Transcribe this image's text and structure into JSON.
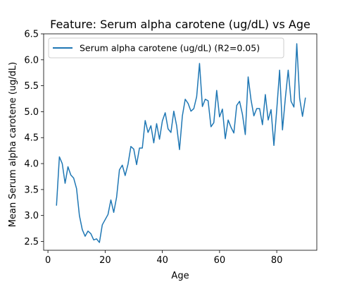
{
  "chart_data": {
    "type": "line",
    "title": "Feature: Serum alpha carotene (ug/dL) vs Age",
    "xlabel": "Age",
    "ylabel": "Mean Serum alpha carotene (ug/dL)",
    "xlim": [
      -1.5,
      94
    ],
    "ylim": [
      2.33,
      6.5
    ],
    "x_ticks": [
      0,
      20,
      40,
      60,
      80
    ],
    "y_ticks": [
      2.5,
      3.0,
      3.5,
      4.0,
      4.5,
      5.0,
      5.5,
      6.0,
      6.5
    ],
    "x_tick_labels": [
      "0",
      "20",
      "40",
      "60",
      "80"
    ],
    "y_tick_labels": [
      "2.5",
      "3.0",
      "3.5",
      "4.0",
      "4.5",
      "5.0",
      "5.5",
      "6.0",
      "6.5"
    ],
    "grid": false,
    "legend_position": "upper-left",
    "series": [
      {
        "name": "Serum alpha carotene (ug/dL) (R2=0.05)",
        "color": "#1f77b4",
        "x": [
          3,
          4,
          5,
          6,
          7,
          8,
          9,
          10,
          11,
          12,
          13,
          14,
          15,
          16,
          17,
          18,
          19,
          20,
          21,
          22,
          23,
          24,
          25,
          26,
          27,
          28,
          29,
          30,
          31,
          32,
          33,
          34,
          35,
          36,
          37,
          38,
          39,
          40,
          41,
          42,
          43,
          44,
          45,
          46,
          47,
          48,
          49,
          50,
          51,
          52,
          53,
          54,
          55,
          56,
          57,
          58,
          59,
          60,
          61,
          62,
          63,
          64,
          65,
          66,
          67,
          68,
          69,
          70,
          71,
          72,
          73,
          74,
          75,
          76,
          77,
          78,
          79,
          80,
          81,
          82,
          83,
          84,
          85,
          86,
          87,
          88,
          89,
          90
        ],
        "y": [
          3.2,
          4.13,
          4.0,
          3.62,
          3.94,
          3.78,
          3.72,
          3.52,
          3.0,
          2.73,
          2.6,
          2.7,
          2.65,
          2.53,
          2.55,
          2.48,
          2.82,
          2.92,
          3.02,
          3.3,
          3.06,
          3.35,
          3.88,
          3.97,
          3.77,
          3.99,
          4.33,
          4.28,
          3.98,
          4.3,
          4.3,
          4.83,
          4.6,
          4.73,
          4.4,
          4.77,
          4.47,
          4.82,
          4.98,
          4.67,
          4.6,
          5.01,
          4.73,
          4.27,
          4.92,
          5.24,
          5.16,
          5.01,
          5.06,
          5.29,
          5.93,
          5.1,
          5.24,
          5.21,
          4.71,
          4.79,
          5.41,
          4.9,
          5.05,
          4.48,
          4.84,
          4.7,
          4.59,
          5.12,
          5.2,
          4.95,
          4.56,
          5.67,
          5.23,
          4.92,
          5.06,
          5.06,
          4.75,
          5.33,
          4.84,
          5.04,
          4.35,
          5.04,
          5.8,
          4.65,
          5.26,
          5.8,
          5.2,
          5.09,
          6.31,
          5.26,
          4.91,
          5.26
        ]
      }
    ]
  }
}
